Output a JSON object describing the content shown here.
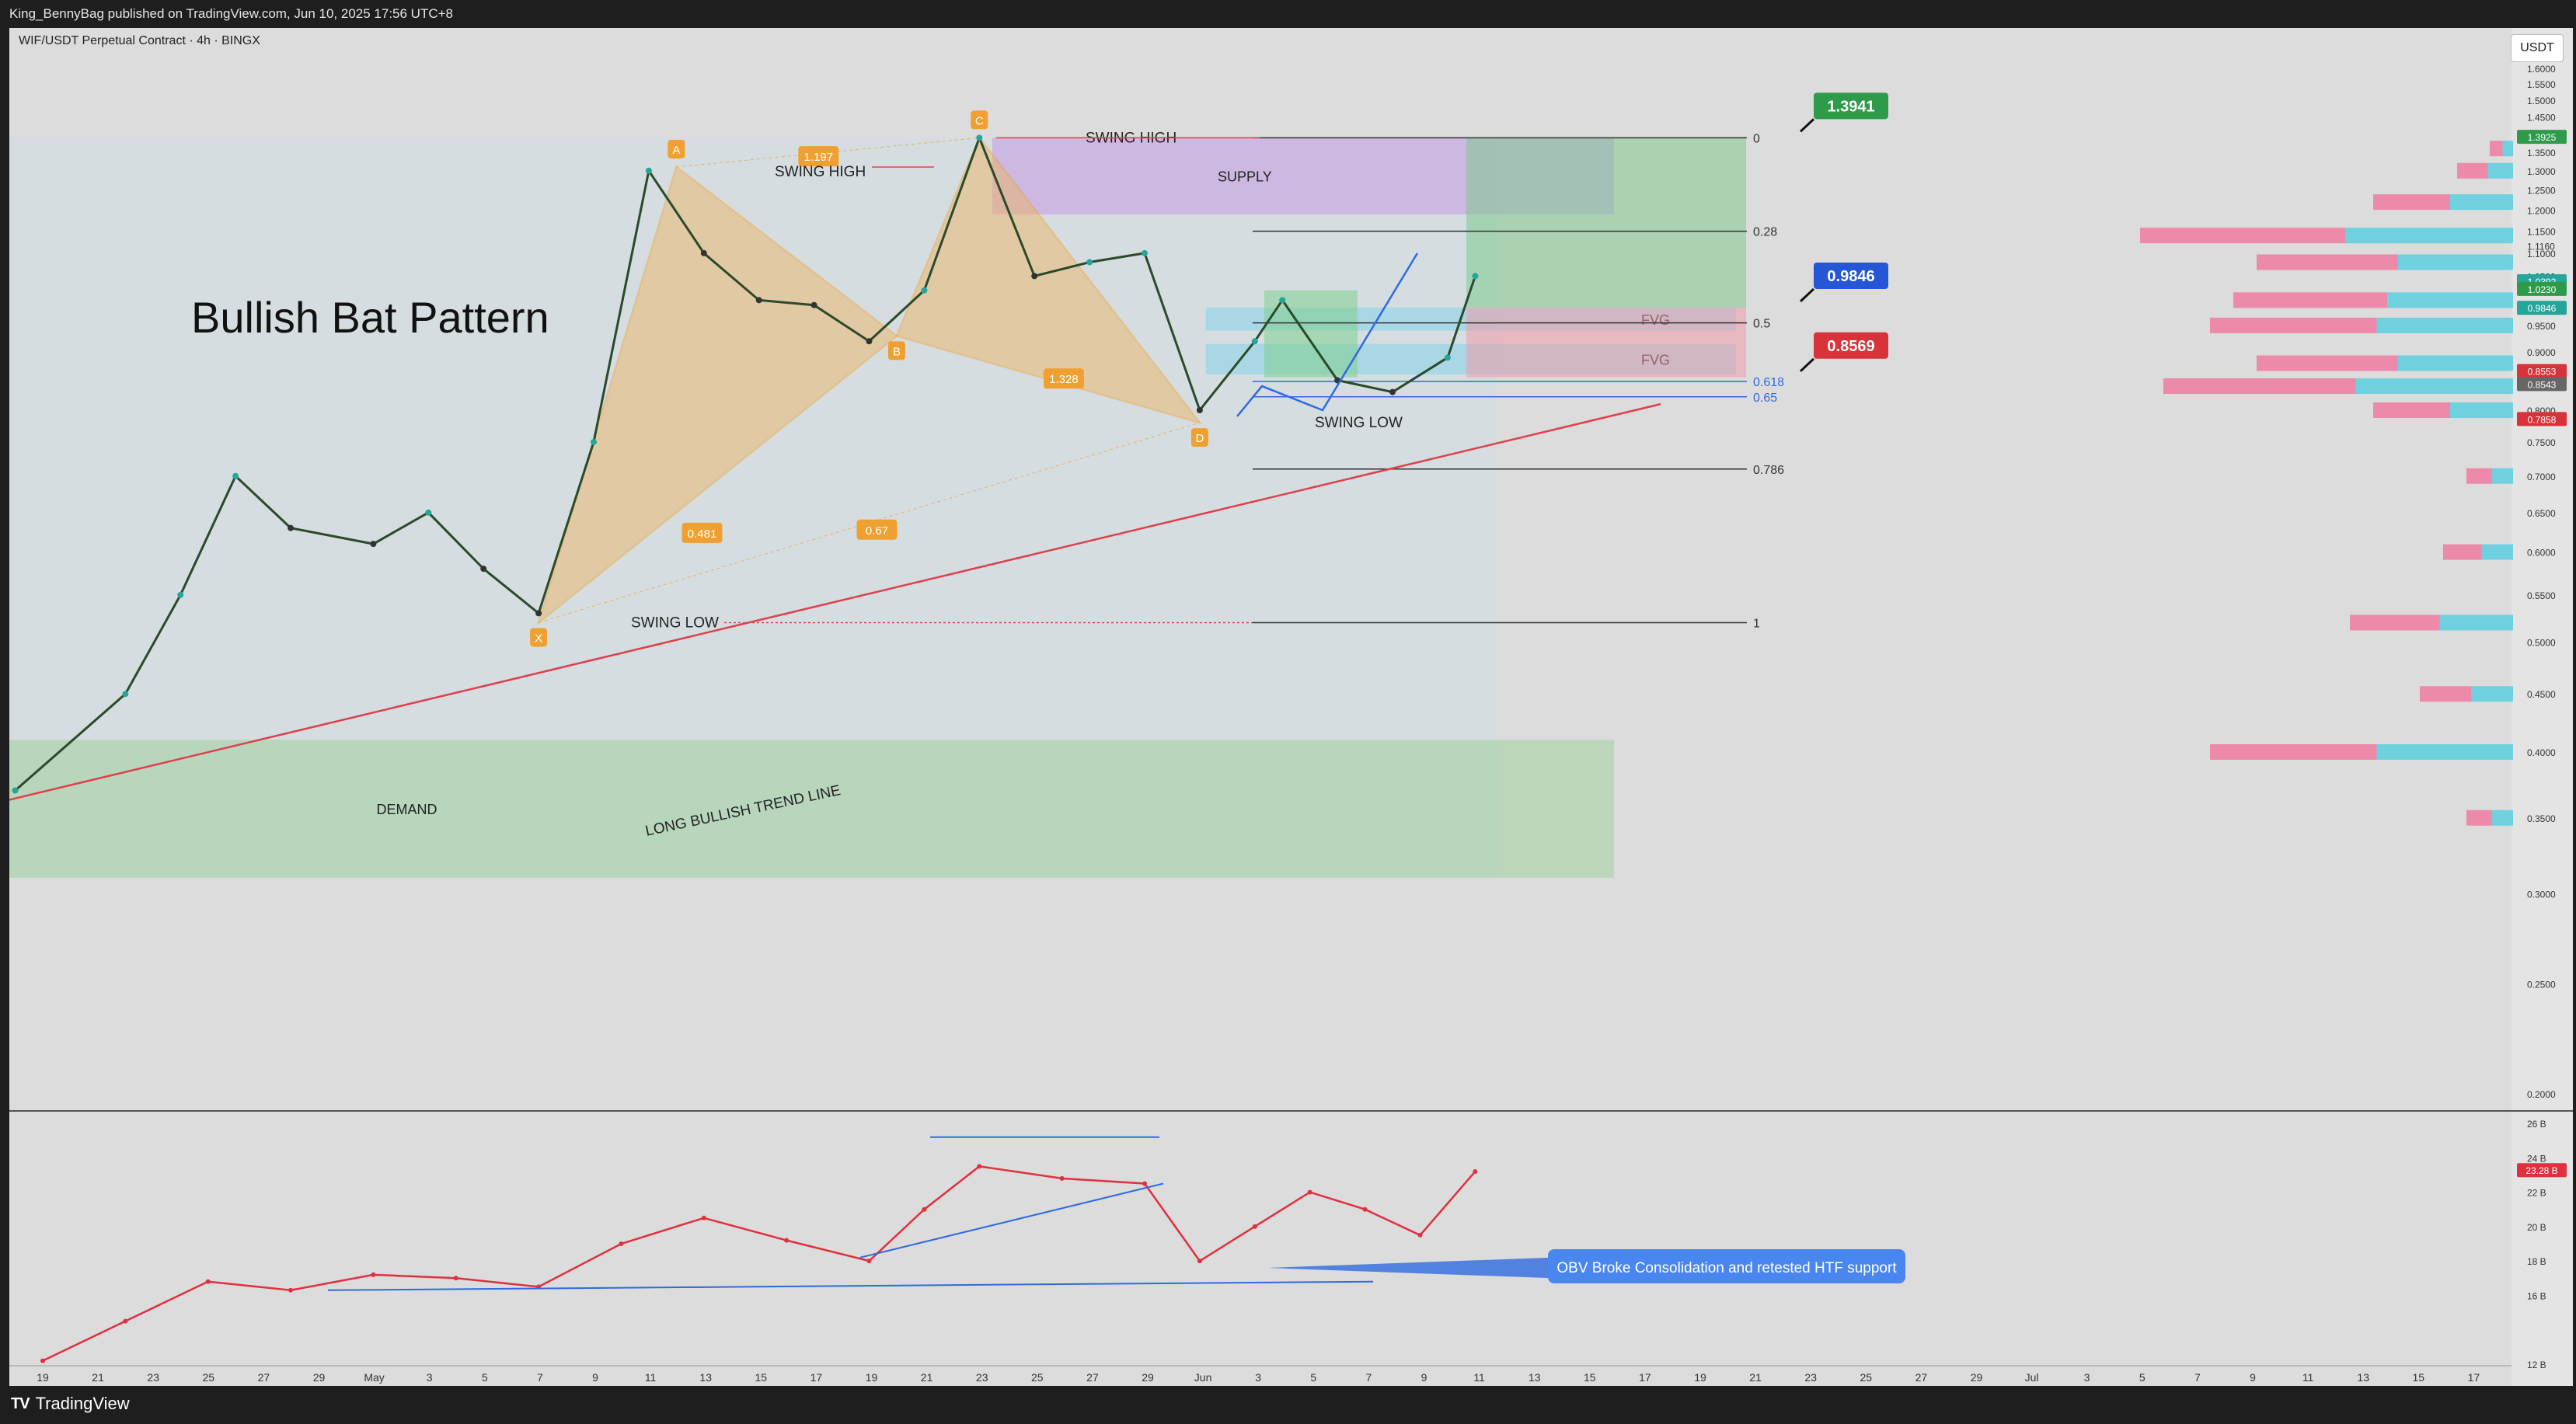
{
  "header": {
    "publisher": "King_BennyBag published on TradingView.com, Jun 10, 2025 17:56 UTC+8"
  },
  "footer": {
    "brand": "TradingView",
    "brand_mark": "TV"
  },
  "colors": {
    "up": "#26a69a",
    "down": "#222222",
    "harmonic": "#f0a030",
    "trend": "#e0404a",
    "obv": "#e0303f",
    "blue": "#2f6ae0",
    "fib": "#222222"
  },
  "chart_data": [
    {
      "type": "line",
      "title": "WIF/USDT Perpetual Contract · 4h · BINGX",
      "annotation_title": "Bullish Bat Pattern",
      "currency_label": "USDT",
      "y_axis": {
        "scale": "log",
        "ylim": [
          0.19,
          1.7
        ],
        "ticks": [
          "1.6000",
          "1.5500",
          "1.5000",
          "1.4500",
          "1.4000",
          "1.3500",
          "1.3000",
          "1.2500",
          "1.2000",
          "1.1500",
          "1.1160",
          "1.1000",
          "1.0500",
          "1.0392",
          "02:03:02",
          "1.0230",
          "0.9846",
          "0.9500",
          "0.9000",
          "0.8553",
          "0.8543",
          "0.8000",
          "0.7858",
          "0.7500",
          "0.7000",
          "0.6500",
          "0.6000",
          "0.5500",
          "0.5000",
          "0.4500",
          "0.4000",
          "0.3500",
          "0.3000",
          "0.2500",
          "0.2000"
        ]
      },
      "x_axis": {
        "ticks": [
          "19",
          "21",
          "23",
          "25",
          "27",
          "29",
          "May",
          "3",
          "5",
          "7",
          "9",
          "11",
          "13",
          "15",
          "17",
          "19",
          "21",
          "23",
          "25",
          "27",
          "29",
          "Jun",
          "3",
          "5",
          "7",
          "9",
          "11",
          "13",
          "15",
          "17",
          "19",
          "21",
          "23",
          "25",
          "27",
          "29",
          "Jul",
          "3",
          "5",
          "7",
          "9",
          "11",
          "13",
          "15",
          "17"
        ]
      },
      "series": [
        {
          "name": "price",
          "x": [
            "Apr 18",
            "Apr 22",
            "Apr 24",
            "Apr 26",
            "Apr 28",
            "May 1",
            "May 3",
            "May 5",
            "May 7",
            "May 9",
            "May 11",
            "May 13",
            "May 15",
            "May 17",
            "May 19",
            "May 21",
            "May 23",
            "May 25",
            "May 27",
            "May 29",
            "May 31",
            "Jun 2",
            "Jun 3",
            "Jun 5",
            "Jun 7",
            "Jun 9",
            "Jun 10"
          ],
          "y": [
            0.37,
            0.45,
            0.55,
            0.7,
            0.63,
            0.61,
            0.65,
            0.58,
            0.53,
            0.75,
            1.3,
            1.1,
            1.0,
            0.99,
            0.92,
            1.02,
            1.39,
            1.05,
            1.08,
            1.1,
            0.8,
            0.92,
            1.0,
            0.85,
            0.83,
            0.89,
            1.05
          ]
        }
      ],
      "harmonic": {
        "points": [
          {
            "label": "X",
            "x": "May 7",
            "y": 0.52
          },
          {
            "label": "A",
            "x": "May 12",
            "y": 1.31
          },
          {
            "label": "B",
            "x": "May 20",
            "y": 0.93
          },
          {
            "label": "C",
            "x": "May 23",
            "y": 1.39
          },
          {
            "label": "D",
            "x": "May 31",
            "y": 0.78
          }
        ],
        "ratios": [
          "1.197",
          "0.481",
          "0.67",
          "1.328"
        ]
      },
      "fib_levels": [
        {
          "label": "0",
          "y": 1.39
        },
        {
          "label": "0.28",
          "y": 1.15
        },
        {
          "label": "0.5",
          "y": 0.955
        },
        {
          "label": "0.618",
          "y": 0.848
        },
        {
          "label": "0.65",
          "y": 0.822
        },
        {
          "label": "0.786",
          "y": 0.71
        },
        {
          "label": "1",
          "y": 0.52
        }
      ],
      "zones": [
        {
          "label": "SUPPLY",
          "y0": 1.19,
          "y1": 1.39
        },
        {
          "label": "DEMAND",
          "y0": 0.31,
          "y1": 0.41
        },
        {
          "label": "FVG",
          "y0": 0.94,
          "y1": 0.985
        },
        {
          "label": "FVG",
          "y0": 0.86,
          "y1": 0.915
        }
      ],
      "annotations": [
        "SWING HIGH",
        "SWING HIGH",
        "SWING LOW",
        "SWING LOW",
        "LONG BULLISH TREND LINE"
      ],
      "price_tags": [
        {
          "label": "1.3941",
          "color": "#2e9b4a"
        },
        {
          "label": "0.9846",
          "color": "#2456d6"
        },
        {
          "label": "0.8569",
          "color": "#d8333a"
        }
      ],
      "axis_badges": [
        {
          "label": "1.3925",
          "color": "#2e9b4a"
        },
        {
          "label": "1.0392",
          "color": "#26a69a"
        },
        {
          "label": "1.0230",
          "color": "#2e9b4a"
        },
        {
          "label": "0.9846",
          "color": "#26a69a"
        },
        {
          "label": "0.8553",
          "color": "#d8333a"
        },
        {
          "label": "0.8543",
          "color": "#666666"
        },
        {
          "label": "0.7858",
          "color": "#d8333a"
        }
      ]
    },
    {
      "type": "line",
      "title": "",
      "y_axis": {
        "ticks": [
          "26 B",
          "24 B",
          "22 B",
          "20 B",
          "18 B",
          "16 B",
          "12 B"
        ],
        "ylim": [
          12,
          26
        ]
      },
      "series": [
        {
          "name": "OBV",
          "x": [
            "Apr 19",
            "Apr 22",
            "Apr 25",
            "Apr 28",
            "May 1",
            "May 4",
            "May 7",
            "May 10",
            "May 13",
            "May 16",
            "May 19",
            "May 21",
            "May 23",
            "May 26",
            "May 29",
            "May 31",
            "Jun 2",
            "Jun 4",
            "Jun 6",
            "Jun 8",
            "Jun 10"
          ],
          "y": [
            12.2,
            14.5,
            16.8,
            16.3,
            17.2,
            17.0,
            16.5,
            19.0,
            20.5,
            19.2,
            18.0,
            21.0,
            23.5,
            22.8,
            22.5,
            18.0,
            20.0,
            22.0,
            21.0,
            19.5,
            23.2
          ]
        }
      ],
      "current_value": "23.28 B",
      "note": "OBV Broke Consolidation and retested HTF support"
    }
  ]
}
